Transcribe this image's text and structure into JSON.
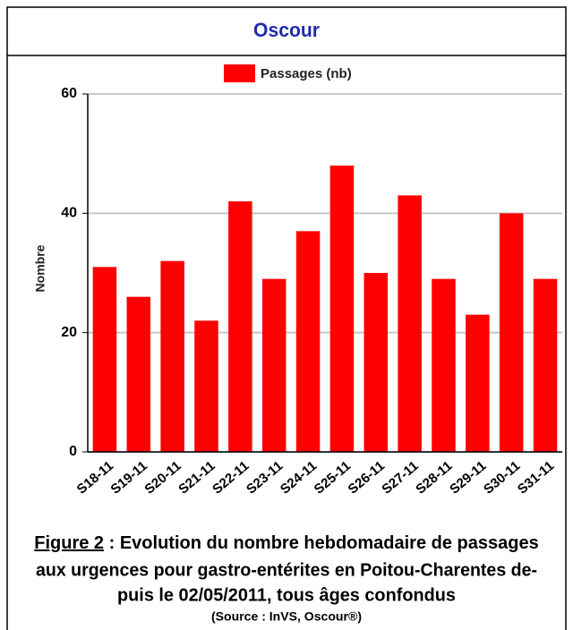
{
  "header": {
    "title": "Oscour"
  },
  "chart_data": {
    "type": "bar",
    "legend": "Passages (nb)",
    "ylabel": "Nombre",
    "color": "#ff0000",
    "categories": [
      "S18-11",
      "S19-11",
      "S20-11",
      "S21-11",
      "S22-11",
      "S23-11",
      "S24-11",
      "S25-11",
      "S26-11",
      "S27-11",
      "S28-11",
      "S29-11",
      "S30-11",
      "S31-11"
    ],
    "values": [
      31,
      26,
      32,
      22,
      42,
      29,
      37,
      48,
      30,
      43,
      29,
      23,
      40,
      29
    ],
    "ylim": [
      0,
      60
    ],
    "yticks": [
      0,
      20,
      40,
      60
    ],
    "grid": true
  },
  "caption": {
    "figure": "Figure 2",
    "lines": [
      " : Evolution du nombre hebdomadaire de passages",
      "aux urgences pour gastro-entérites en Poitou-Charentes de-",
      "puis le 02/05/2011, tous âges confondus"
    ],
    "source": "(Source : InVS, Oscour®)"
  }
}
